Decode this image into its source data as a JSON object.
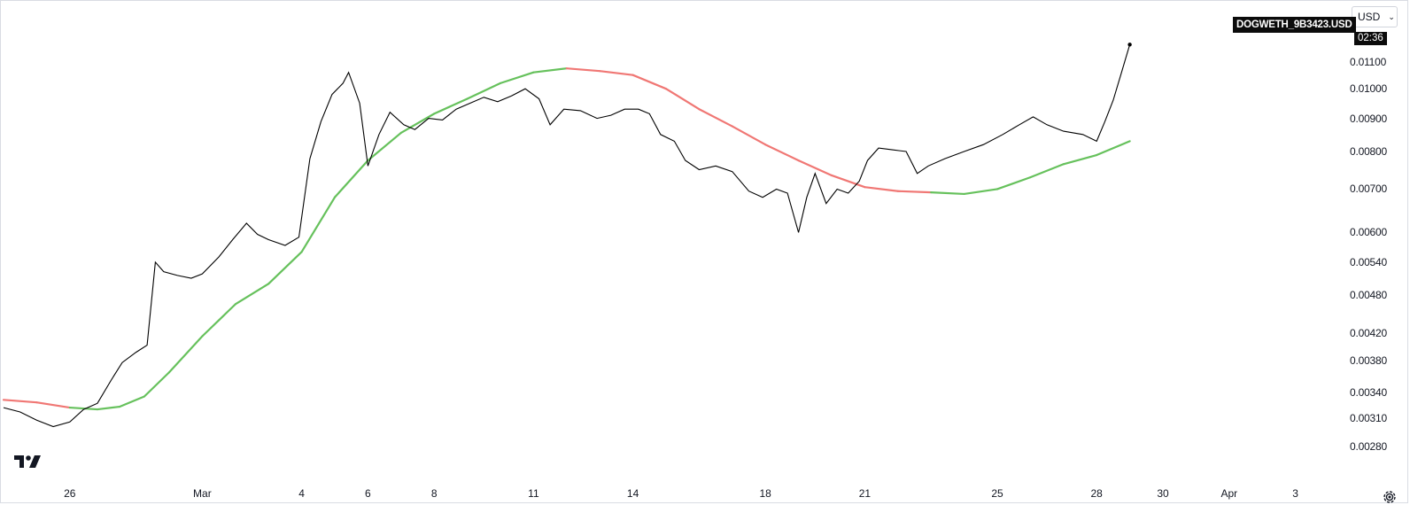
{
  "header": {
    "currency": "USD",
    "ticker": "DOGWETH_9B3423.USD",
    "countdown": "02:36"
  },
  "icons": {
    "logo": "tradingview-logo-icon",
    "settings": "gear-icon",
    "dropdown": "chevron-down-icon"
  },
  "colors": {
    "price_line": "#000000",
    "ma_up": "#66c15c",
    "ma_down": "#f07774",
    "axis_text": "#131722"
  },
  "chart_data": {
    "type": "line",
    "title": "",
    "x_start": "2024-02-24",
    "x_end": "2024-04-04",
    "yscale": "log",
    "ylim": [
      0.0026,
      0.0132
    ],
    "grid": false,
    "y_ticks": [
      "0.01100",
      "0.01000",
      "0.00900",
      "0.00800",
      "0.00700",
      "0.00600",
      "0.00540",
      "0.00480",
      "0.00420",
      "0.00380",
      "0.00340",
      "0.00310",
      "0.00280"
    ],
    "x_ticks": [
      {
        "label": "26",
        "date": "2024-02-26"
      },
      {
        "label": "Mar",
        "date": "2024-03-01"
      },
      {
        "label": "4",
        "date": "2024-03-04"
      },
      {
        "label": "6",
        "date": "2024-03-06"
      },
      {
        "label": "8",
        "date": "2024-03-08"
      },
      {
        "label": "11",
        "date": "2024-03-11"
      },
      {
        "label": "14",
        "date": "2024-03-14"
      },
      {
        "label": "18",
        "date": "2024-03-18"
      },
      {
        "label": "21",
        "date": "2024-03-21"
      },
      {
        "label": "25",
        "date": "2024-03-25"
      },
      {
        "label": "28",
        "date": "2024-03-28"
      },
      {
        "label": "30",
        "date": "2024-03-30"
      },
      {
        "label": "Apr",
        "date": "2024-04-01"
      },
      {
        "label": "3",
        "date": "2024-04-03"
      }
    ],
    "series": [
      {
        "style": "price",
        "points": [
          [
            "2024-02-24 00:00",
            0.00322
          ],
          [
            "2024-02-24 12:00",
            0.00317
          ],
          [
            "2024-02-25 00:00",
            0.00308
          ],
          [
            "2024-02-25 12:00",
            0.00301
          ],
          [
            "2024-02-26 00:00",
            0.00306
          ],
          [
            "2024-02-26 10:00",
            0.0032
          ],
          [
            "2024-02-26 20:00",
            0.00327
          ],
          [
            "2024-02-27 06:00",
            0.00355
          ],
          [
            "2024-02-27 14:00",
            0.00378
          ],
          [
            "2024-02-28 00:00",
            0.00392
          ],
          [
            "2024-02-28 08:00",
            0.00402
          ],
          [
            "2024-02-28 14:00",
            0.0054
          ],
          [
            "2024-02-28 20:00",
            0.00522
          ],
          [
            "2024-02-29 06:00",
            0.00515
          ],
          [
            "2024-02-29 16:00",
            0.0051
          ],
          [
            "2024-03-01 00:00",
            0.00518
          ],
          [
            "2024-03-01 12:00",
            0.0055
          ],
          [
            "2024-03-01 22:00",
            0.00585
          ],
          [
            "2024-03-02 08:00",
            0.0062
          ],
          [
            "2024-03-02 16:00",
            0.00596
          ],
          [
            "2024-03-03 00:00",
            0.00585
          ],
          [
            "2024-03-03 12:00",
            0.00573
          ],
          [
            "2024-03-03 22:00",
            0.0059
          ],
          [
            "2024-03-04 06:00",
            0.0078
          ],
          [
            "2024-03-04 14:00",
            0.0089
          ],
          [
            "2024-03-04 22:00",
            0.0098
          ],
          [
            "2024-03-05 06:00",
            0.0102
          ],
          [
            "2024-03-05 10:00",
            0.0106
          ],
          [
            "2024-03-05 18:00",
            0.0095
          ],
          [
            "2024-03-06 00:00",
            0.0076
          ],
          [
            "2024-03-06 08:00",
            0.0085
          ],
          [
            "2024-03-06 16:00",
            0.0092
          ],
          [
            "2024-03-07 02:00",
            0.0088
          ],
          [
            "2024-03-07 10:00",
            0.00865
          ],
          [
            "2024-03-07 20:00",
            0.009
          ],
          [
            "2024-03-08 06:00",
            0.00895
          ],
          [
            "2024-03-08 16:00",
            0.0093
          ],
          [
            "2024-03-09 02:00",
            0.0095
          ],
          [
            "2024-03-09 12:00",
            0.0097
          ],
          [
            "2024-03-09 22:00",
            0.00955
          ],
          [
            "2024-03-10 08:00",
            0.00975
          ],
          [
            "2024-03-10 18:00",
            0.01
          ],
          [
            "2024-03-11 04:00",
            0.00965
          ],
          [
            "2024-03-11 12:00",
            0.0088
          ],
          [
            "2024-03-11 22:00",
            0.0093
          ],
          [
            "2024-03-12 10:00",
            0.00925
          ],
          [
            "2024-03-12 22:00",
            0.009
          ],
          [
            "2024-03-13 08:00",
            0.0091
          ],
          [
            "2024-03-13 18:00",
            0.0093
          ],
          [
            "2024-03-14 04:00",
            0.0093
          ],
          [
            "2024-03-14 12:00",
            0.00915
          ],
          [
            "2024-03-14 20:00",
            0.0085
          ],
          [
            "2024-03-15 06:00",
            0.0083
          ],
          [
            "2024-03-15 14:00",
            0.00775
          ],
          [
            "2024-03-16 00:00",
            0.0075
          ],
          [
            "2024-03-16 12:00",
            0.0076
          ],
          [
            "2024-03-17 00:00",
            0.00745
          ],
          [
            "2024-03-17 12:00",
            0.00695
          ],
          [
            "2024-03-17 22:00",
            0.0068
          ],
          [
            "2024-03-18 08:00",
            0.007
          ],
          [
            "2024-03-18 16:00",
            0.0069
          ],
          [
            "2024-03-19 00:00",
            0.006
          ],
          [
            "2024-03-19 06:00",
            0.0068
          ],
          [
            "2024-03-19 12:00",
            0.0074
          ],
          [
            "2024-03-19 20:00",
            0.00665
          ],
          [
            "2024-03-20 04:00",
            0.007
          ],
          [
            "2024-03-20 12:00",
            0.0069
          ],
          [
            "2024-03-20 20:00",
            0.0072
          ],
          [
            "2024-03-21 02:00",
            0.00775
          ],
          [
            "2024-03-21 10:00",
            0.0081
          ],
          [
            "2024-03-21 20:00",
            0.00805
          ],
          [
            "2024-03-22 06:00",
            0.008
          ],
          [
            "2024-03-22 14:00",
            0.0074
          ],
          [
            "2024-03-22 22:00",
            0.0076
          ],
          [
            "2024-03-23 10:00",
            0.0078
          ],
          [
            "2024-03-24 00:00",
            0.008
          ],
          [
            "2024-03-24 14:00",
            0.0082
          ],
          [
            "2024-03-25 04:00",
            0.0085
          ],
          [
            "2024-03-25 16:00",
            0.0088
          ],
          [
            "2024-03-26 02:00",
            0.00905
          ],
          [
            "2024-03-26 12:00",
            0.0088
          ],
          [
            "2024-03-27 00:00",
            0.0086
          ],
          [
            "2024-03-27 14:00",
            0.0085
          ],
          [
            "2024-03-28 00:00",
            0.0083
          ],
          [
            "2024-03-28 06:00",
            0.0089
          ],
          [
            "2024-03-28 12:00",
            0.0096
          ],
          [
            "2024-03-28 18:00",
            0.0106
          ],
          [
            "2024-03-29 00:00",
            0.0117
          ]
        ]
      },
      {
        "style": "moving-average",
        "points": [
          [
            "2024-02-24 00:00",
            0.00331,
            "down"
          ],
          [
            "2024-02-25 00:00",
            0.00328,
            "down"
          ],
          [
            "2024-02-26 00:00",
            0.00322,
            "down"
          ],
          [
            "2024-02-26 20:00",
            0.0032,
            "up"
          ],
          [
            "2024-02-27 12:00",
            0.00323,
            "up"
          ],
          [
            "2024-02-28 06:00",
            0.00335,
            "up"
          ],
          [
            "2024-02-29 00:00",
            0.00365,
            "up"
          ],
          [
            "2024-03-01 00:00",
            0.00415,
            "up"
          ],
          [
            "2024-03-02 00:00",
            0.00465,
            "up"
          ],
          [
            "2024-03-03 00:00",
            0.005,
            "up"
          ],
          [
            "2024-03-04 00:00",
            0.0056,
            "up"
          ],
          [
            "2024-03-05 00:00",
            0.0068,
            "up"
          ],
          [
            "2024-03-06 00:00",
            0.00775,
            "up"
          ],
          [
            "2024-03-07 00:00",
            0.00855,
            "up"
          ],
          [
            "2024-03-08 00:00",
            0.00915,
            "up"
          ],
          [
            "2024-03-09 00:00",
            0.00965,
            "up"
          ],
          [
            "2024-03-10 00:00",
            0.0102,
            "up"
          ],
          [
            "2024-03-11 00:00",
            0.0106,
            "up"
          ],
          [
            "2024-03-12 00:00",
            0.01075,
            "up"
          ],
          [
            "2024-03-13 00:00",
            0.01065,
            "down"
          ],
          [
            "2024-03-14 00:00",
            0.0105,
            "down"
          ],
          [
            "2024-03-15 00:00",
            0.01,
            "down"
          ],
          [
            "2024-03-16 00:00",
            0.0093,
            "down"
          ],
          [
            "2024-03-17 00:00",
            0.00875,
            "down"
          ],
          [
            "2024-03-18 00:00",
            0.0082,
            "down"
          ],
          [
            "2024-03-19 00:00",
            0.00775,
            "down"
          ],
          [
            "2024-03-20 00:00",
            0.00735,
            "down"
          ],
          [
            "2024-03-21 00:00",
            0.00705,
            "down"
          ],
          [
            "2024-03-22 00:00",
            0.00695,
            "down"
          ],
          [
            "2024-03-23 00:00",
            0.00692,
            "down"
          ],
          [
            "2024-03-24 00:00",
            0.00688,
            "up"
          ],
          [
            "2024-03-25 00:00",
            0.007,
            "up"
          ],
          [
            "2024-03-26 00:00",
            0.0073,
            "up"
          ],
          [
            "2024-03-27 00:00",
            0.00765,
            "up"
          ],
          [
            "2024-03-28 00:00",
            0.0079,
            "up"
          ],
          [
            "2024-03-29 00:00",
            0.0083,
            "up"
          ]
        ]
      }
    ]
  }
}
